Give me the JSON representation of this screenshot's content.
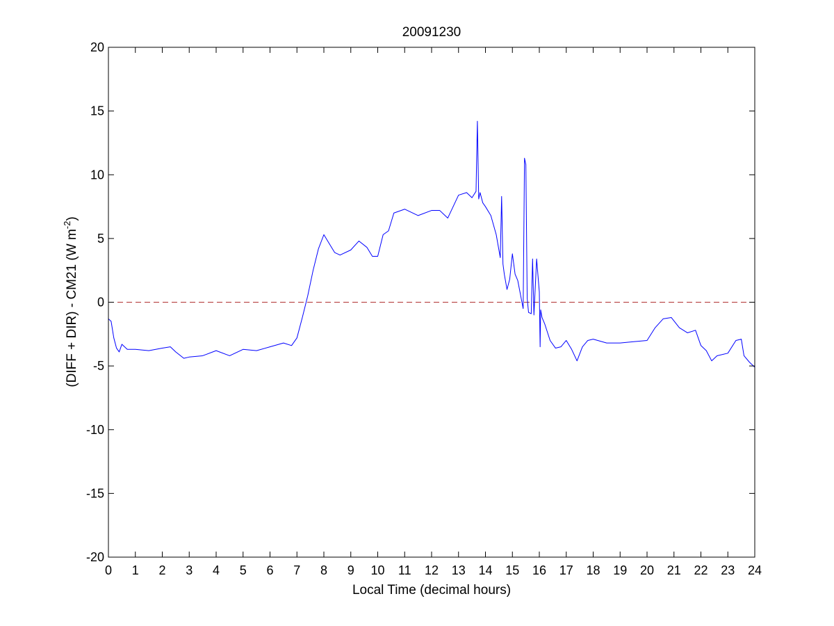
{
  "chart_data": {
    "type": "line",
    "title": "20091230",
    "xlabel": "Local Time (decimal hours)",
    "ylabel": {
      "prefix": "(DIFF + DIR) - CM21 (W m",
      "superscript": "-2",
      "suffix": ")"
    },
    "xlim": [
      0,
      24
    ],
    "ylim": [
      -20,
      20
    ],
    "xticks": [
      0,
      1,
      2,
      3,
      4,
      5,
      6,
      7,
      8,
      9,
      10,
      11,
      12,
      13,
      14,
      15,
      16,
      17,
      18,
      19,
      20,
      21,
      22,
      23,
      24
    ],
    "yticks": [
      -20,
      -15,
      -10,
      -5,
      0,
      5,
      10,
      15,
      20
    ],
    "grid": false,
    "series": [
      {
        "color": "#0000ff",
        "x": [
          0.0,
          0.1,
          0.2,
          0.3,
          0.4,
          0.5,
          0.7,
          1.0,
          1.5,
          2.0,
          2.3,
          2.5,
          2.8,
          3.0,
          3.5,
          4.0,
          4.5,
          5.0,
          5.5,
          6.0,
          6.5,
          6.8,
          7.0,
          7.2,
          7.4,
          7.6,
          7.8,
          8.0,
          8.2,
          8.4,
          8.6,
          9.0,
          9.3,
          9.6,
          9.8,
          10.0,
          10.2,
          10.4,
          10.6,
          11.0,
          11.5,
          12.0,
          12.3,
          12.6,
          13.0,
          13.3,
          13.5,
          13.65,
          13.7,
          13.75,
          13.8,
          13.9,
          14.0,
          14.2,
          14.4,
          14.55,
          14.6,
          14.65,
          14.7,
          14.8,
          14.9,
          15.0,
          15.1,
          15.2,
          15.3,
          15.4,
          15.45,
          15.5,
          15.55,
          15.6,
          15.7,
          15.75,
          15.8,
          15.9,
          16.0,
          16.03,
          16.05,
          16.1,
          16.2,
          16.4,
          16.6,
          16.8,
          17.0,
          17.2,
          17.4,
          17.6,
          17.8,
          18.0,
          18.5,
          19.0,
          19.5,
          20.0,
          20.3,
          20.6,
          20.9,
          21.2,
          21.5,
          21.8,
          22.0,
          22.2,
          22.4,
          22.6,
          23.0,
          23.3,
          23.5,
          23.6,
          23.8,
          24.0
        ],
        "y": [
          -1.3,
          -1.5,
          -2.8,
          -3.6,
          -3.9,
          -3.3,
          -3.7,
          -3.7,
          -3.8,
          -3.6,
          -3.5,
          -3.9,
          -4.4,
          -4.3,
          -4.2,
          -3.8,
          -4.2,
          -3.7,
          -3.8,
          -3.5,
          -3.2,
          -3.4,
          -2.8,
          -1.2,
          0.5,
          2.5,
          4.2,
          5.3,
          4.6,
          3.9,
          3.7,
          4.1,
          4.8,
          4.3,
          3.6,
          3.6,
          5.3,
          5.6,
          7.0,
          7.3,
          6.8,
          7.2,
          7.2,
          6.6,
          8.4,
          8.6,
          8.2,
          8.7,
          14.2,
          8.1,
          8.6,
          7.8,
          7.5,
          6.8,
          5.3,
          3.5,
          8.3,
          3.0,
          2.2,
          1.0,
          1.8,
          3.8,
          2.2,
          1.7,
          0.6,
          -0.5,
          11.3,
          10.8,
          0.3,
          -0.8,
          -0.9,
          3.4,
          -1.0,
          3.4,
          0.8,
          -3.5,
          -0.6,
          -1.2,
          -1.7,
          -3.0,
          -3.6,
          -3.5,
          -3.0,
          -3.7,
          -4.6,
          -3.5,
          -3.0,
          -2.9,
          -3.2,
          -3.2,
          -3.1,
          -3.0,
          -2.0,
          -1.3,
          -1.2,
          -2.0,
          -2.4,
          -2.2,
          -3.4,
          -3.8,
          -4.6,
          -4.2,
          -4.0,
          -3.0,
          -2.9,
          -4.2,
          -4.7,
          -5.1
        ]
      },
      {
        "color": "#b03030",
        "style": "dashed",
        "x": [
          0,
          24
        ],
        "y": [
          0,
          0
        ]
      }
    ]
  }
}
